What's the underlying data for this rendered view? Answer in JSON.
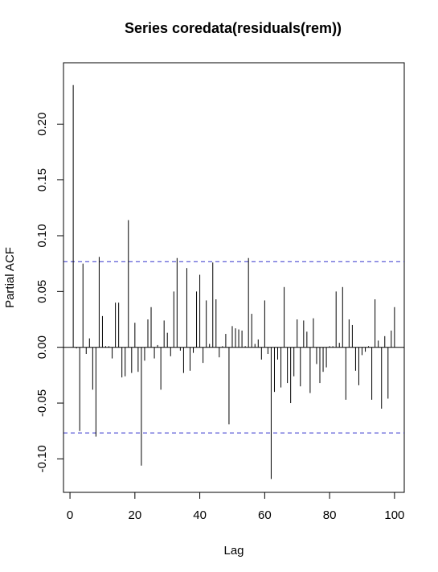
{
  "chart_data": {
    "type": "bar",
    "title": "Series  coredata(residuals(rem))",
    "xlabel": "Lag",
    "ylabel": "Partial ACF",
    "xlim": [
      -2,
      103
    ],
    "ylim": [
      -0.13,
      0.255
    ],
    "x_ticks": [
      0,
      20,
      40,
      60,
      80,
      100
    ],
    "x_tick_labels": [
      "0",
      "20",
      "40",
      "60",
      "80",
      "100"
    ],
    "y_ticks": [
      -0.1,
      -0.05,
      0.0,
      0.05,
      0.1,
      0.15,
      0.2
    ],
    "y_tick_labels": [
      "-0.10",
      "-0.05",
      "0.00",
      "0.05",
      "0.10",
      "0.15",
      "0.20"
    ],
    "confidence_bounds": [
      0.0767,
      -0.0767
    ],
    "confidence_line_color": "#3333cc",
    "bar_color": "#000000",
    "lags": [
      1,
      2,
      3,
      4,
      5,
      6,
      7,
      8,
      9,
      10,
      11,
      12,
      13,
      14,
      15,
      16,
      17,
      18,
      19,
      20,
      21,
      22,
      23,
      24,
      25,
      26,
      27,
      28,
      29,
      30,
      31,
      32,
      33,
      34,
      35,
      36,
      37,
      38,
      39,
      40,
      41,
      42,
      43,
      44,
      45,
      46,
      47,
      48,
      49,
      50,
      51,
      52,
      53,
      54,
      55,
      56,
      57,
      58,
      59,
      60,
      61,
      62,
      63,
      64,
      65,
      66,
      67,
      68,
      69,
      70,
      71,
      72,
      73,
      74,
      75,
      76,
      77,
      78,
      79,
      80,
      81,
      82,
      83,
      84,
      85,
      86,
      87,
      88,
      89,
      90,
      91,
      92,
      93,
      94,
      95,
      96,
      97,
      98,
      99,
      100
    ],
    "values": [
      0.235,
      -0.001,
      -0.075,
      0.075,
      -0.006,
      0.008,
      -0.038,
      -0.08,
      0.081,
      0.028,
      0.001,
      0.001,
      -0.01,
      0.04,
      0.04,
      -0.027,
      -0.026,
      0.114,
      -0.023,
      0.022,
      -0.022,
      -0.106,
      -0.012,
      0.025,
      0.036,
      -0.01,
      0.002,
      -0.038,
      0.024,
      0.013,
      -0.008,
      0.05,
      0.08,
      -0.003,
      -0.023,
      0.071,
      -0.021,
      -0.005,
      0.05,
      0.065,
      -0.014,
      0.042,
      0.003,
      0.076,
      0.043,
      -0.009,
      0.001,
      0.012,
      -0.069,
      0.019,
      0.017,
      0.016,
      0.015,
      0.001,
      0.08,
      0.03,
      0.003,
      0.007,
      -0.011,
      0.042,
      -0.006,
      -0.118,
      -0.04,
      -0.011,
      -0.036,
      0.054,
      -0.032,
      -0.05,
      -0.026,
      0.025,
      -0.035,
      0.024,
      0.014,
      -0.041,
      0.026,
      -0.015,
      -0.032,
      -0.022,
      -0.018,
      0.001,
      0.001,
      0.05,
      0.004,
      0.054,
      -0.047,
      0.025,
      0.02,
      -0.021,
      -0.034,
      -0.007,
      -0.004,
      0.001,
      -0.047,
      0.043,
      0.006,
      -0.055,
      0.01,
      -0.046,
      0.015,
      0.036
    ]
  }
}
